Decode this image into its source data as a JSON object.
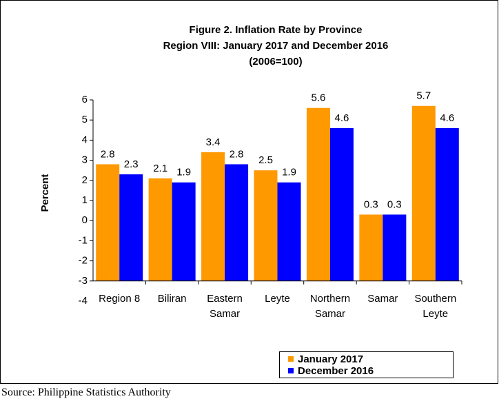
{
  "chart_data": {
    "type": "bar",
    "title": [
      "Figure 2. Inflation Rate by Province",
      "Region VIII: January 2017 and December 2016",
      "(2006=100)"
    ],
    "ylabel": "Percent",
    "categories": [
      "Region 8",
      "Biliran",
      "Eastern\nSamar",
      "Leyte",
      "Northern\nSamar",
      "Samar",
      "Southern\nLeyte"
    ],
    "series": [
      {
        "name": "January 2017",
        "color": "#FF9900",
        "values": [
          2.8,
          2.1,
          3.4,
          2.5,
          5.6,
          0.3,
          5.7
        ]
      },
      {
        "name": "December 2016",
        "color": "#0000FF",
        "values": [
          2.3,
          1.9,
          2.8,
          1.9,
          4.6,
          0.3,
          4.6
        ]
      }
    ],
    "ylim": [
      -4,
      6
    ],
    "yticks": [
      -4,
      -3,
      -2,
      -1,
      0,
      1,
      2,
      3,
      4,
      5,
      6
    ],
    "axis_crossing": -3,
    "source": "Source: Philippine Statistics Authority"
  }
}
